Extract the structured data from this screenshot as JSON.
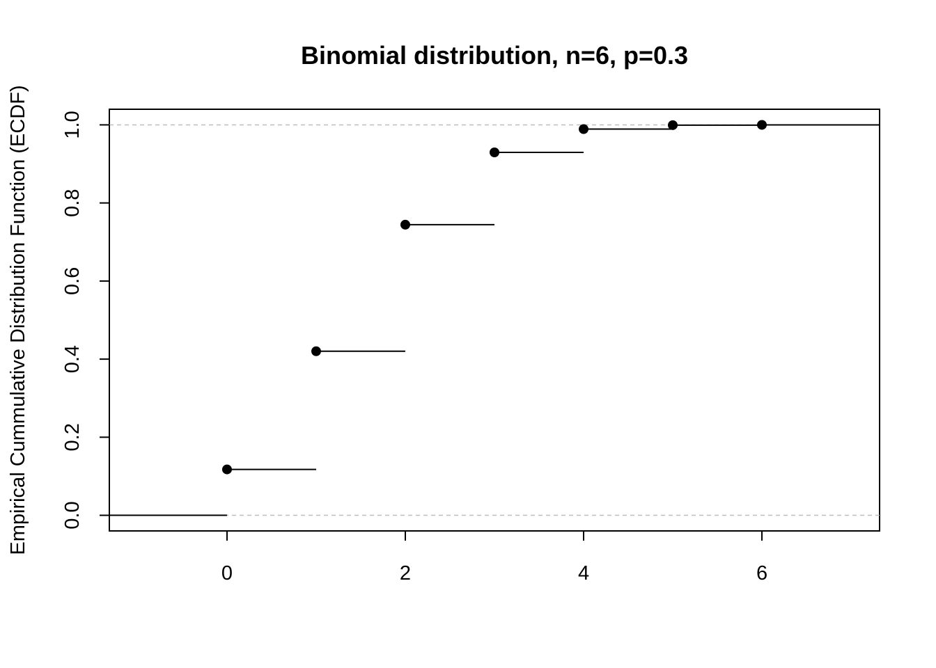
{
  "chart_data": {
    "type": "step",
    "title": "Binomial distribution, n=6, p=0.3",
    "xlabel": "",
    "ylabel": "Empirical Cummulative Distribution Function (ECDF)",
    "xlim": [
      -1.32,
      7.32
    ],
    "ylim": [
      -0.04,
      1.04
    ],
    "xticks": [
      "0",
      "2",
      "4",
      "6"
    ],
    "xtick_values": [
      0,
      2,
      4,
      6
    ],
    "yticks": [
      "0.0",
      "0.2",
      "0.4",
      "0.6",
      "0.8",
      "1.0"
    ],
    "ytick_values": [
      0.0,
      0.2,
      0.4,
      0.6,
      0.8,
      1.0
    ],
    "points": [
      {
        "x": 0,
        "y": 0.1176
      },
      {
        "x": 1,
        "y": 0.4202
      },
      {
        "x": 2,
        "y": 0.7443
      },
      {
        "x": 3,
        "y": 0.9295
      },
      {
        "x": 4,
        "y": 0.9891
      },
      {
        "x": 5,
        "y": 0.9993
      },
      {
        "x": 6,
        "y": 1.0
      }
    ],
    "reference_lines": [
      0,
      1
    ],
    "grid": false,
    "legend": "none",
    "colors": {
      "line": "#000000",
      "point": "#000000",
      "reference": "#bebebe"
    }
  }
}
